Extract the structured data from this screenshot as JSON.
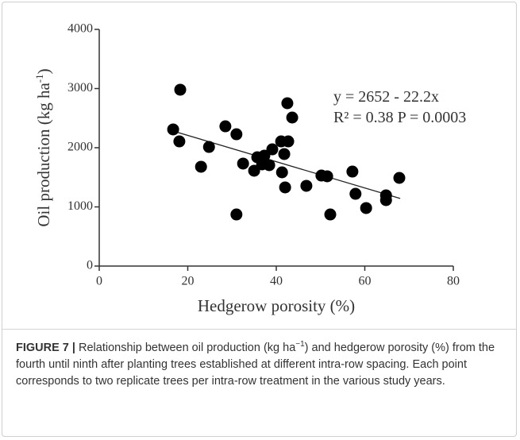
{
  "chart_data": {
    "type": "scatter",
    "xlabel": "Hedgerow porosity (%)",
    "ylabel": [
      "Oil production (kg ha",
      "-1",
      ")"
    ],
    "annotations": [
      "y = 2652 - 22.2x",
      "R² = 0.38 P = 0.0003"
    ],
    "color": "#000000",
    "x": [
      16.7,
      18.1,
      18.3,
      24.8,
      23.0,
      28.5,
      31.0,
      31.0,
      32.5,
      35.0,
      35.7,
      36.8,
      37.3,
      38.4,
      39.1,
      41.1,
      41.3,
      41.8,
      42.0,
      42.5,
      42.7,
      43.6,
      46.8,
      50.2,
      51.5,
      52.2,
      57.2,
      57.9,
      60.3,
      64.8,
      64.8,
      67.8
    ],
    "values": [
      2309,
      2107,
      2980,
      2013,
      1678,
      2362,
      2228,
      872,
      1732,
      1611,
      1839,
      1718,
      1866,
      1705,
      1973,
      2107,
      1584,
      1893,
      1329,
      2752,
      2107,
      2510,
      1356,
      1530,
      1517,
      872,
      1597,
      1221,
      980,
      1195,
      1114,
      1490
    ],
    "trend": {
      "x": [
        16,
        68
      ],
      "values": [
        2297,
        1142
      ]
    },
    "xlim": [
      0,
      80
    ],
    "xticks": [
      0,
      20,
      40,
      60,
      80
    ],
    "ylim": [
      0,
      4000
    ],
    "yticks": [
      0,
      1000,
      2000,
      3000,
      4000
    ]
  },
  "caption": {
    "label": "FIGURE 7 |",
    "parts": [
      "Relationship between oil production (kg ha",
      "−1",
      ") and hedgerow porosity (%) from the fourth until ninth after planting trees established at different intra-row spacing. Each point corresponds to two replicate trees per intra-row treatment in the various study years."
    ]
  }
}
